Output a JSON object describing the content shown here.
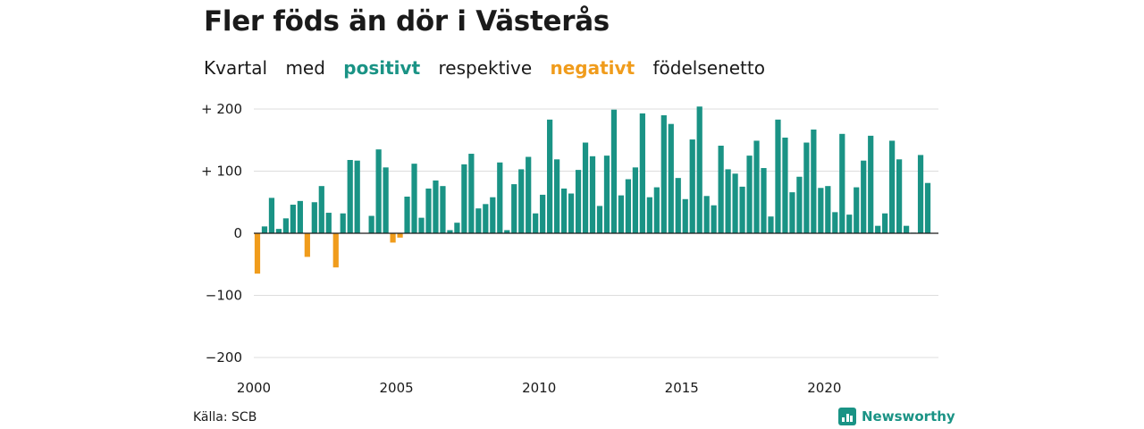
{
  "title": "Fler föds än dör i Västerås",
  "subtitle": {
    "part1": "Kvartal",
    "part2": "med",
    "positive_word": "positivt",
    "part3": "respektive",
    "negative_word": "negativt",
    "part4": "födelsenetto"
  },
  "colors": {
    "positive": "#1a9385",
    "negative": "#f09c1c",
    "grid": "#dddddd",
    "axis": "#1a1a1a"
  },
  "source": "Källa: SCB",
  "brand": {
    "name": "Newsworthy",
    "icon": "newsworthy-logo-icon"
  },
  "chart_data": {
    "type": "bar",
    "title": "Fler föds än dör i Västerås",
    "xlabel": "",
    "ylabel": "",
    "ylim": [
      -200,
      200
    ],
    "y_ticks": [
      200,
      100,
      0,
      -100,
      -200
    ],
    "y_tick_labels": [
      "+ 200",
      "+ 100",
      "0",
      "−100",
      "−200"
    ],
    "x_ticks": [
      2000,
      2005,
      2010,
      2015,
      2020
    ],
    "x_tick_labels": [
      "2000",
      "2005",
      "2010",
      "2015",
      "2020"
    ],
    "grid": true,
    "start": "2000 Q1",
    "end": "2023 Q4",
    "values": [
      -65,
      11,
      57,
      7,
      24,
      46,
      52,
      -38,
      50,
      76,
      33,
      -55,
      32,
      118,
      117,
      0,
      28,
      135,
      106,
      -15,
      -7,
      59,
      112,
      25,
      72,
      85,
      76,
      5,
      17,
      111,
      128,
      40,
      47,
      58,
      114,
      5,
      79,
      103,
      123,
      32,
      62,
      183,
      119,
      72,
      64,
      102,
      146,
      124,
      44,
      125,
      199,
      61,
      87,
      106,
      193,
      58,
      74,
      190,
      176,
      89,
      55,
      151,
      204,
      60,
      45,
      141,
      103,
      96,
      75,
      125,
      149,
      105,
      27,
      183,
      154,
      66,
      91,
      146,
      167,
      73,
      76,
      34,
      160,
      30,
      74,
      117,
      157,
      12,
      32,
      149,
      119,
      12,
      1,
      126,
      81,
      0
    ]
  }
}
